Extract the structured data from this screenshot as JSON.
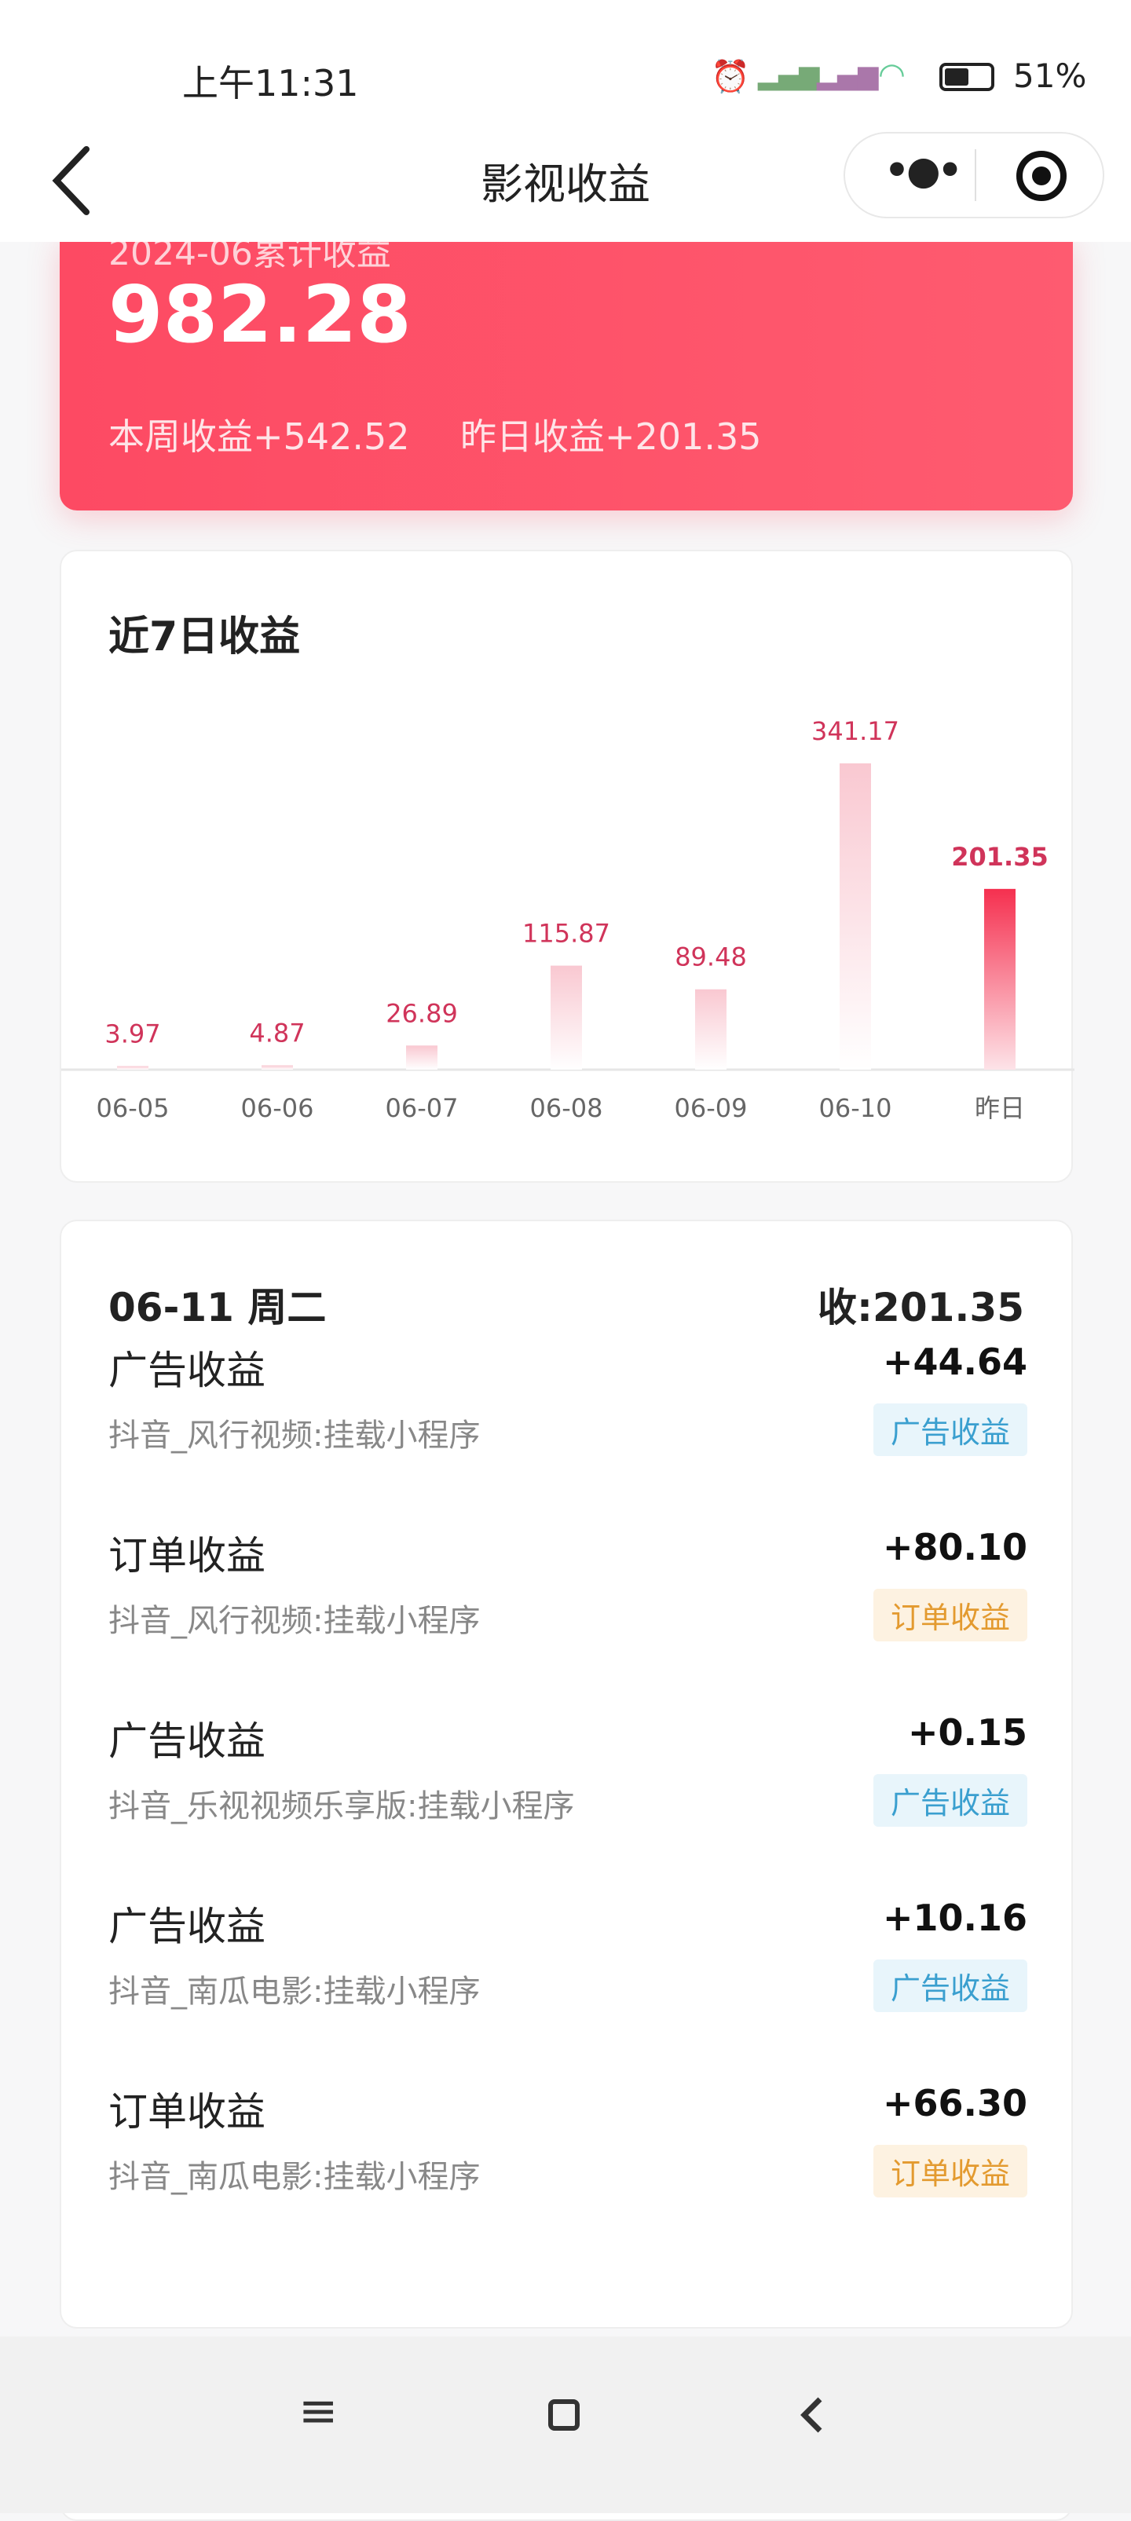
{
  "status_bar": {
    "time": "上午11:31",
    "battery": "51%"
  },
  "nav": {
    "title": "影视收益",
    "more_icon": "more-dots-icon",
    "target_icon": "target-icon",
    "back_icon": "chevron-left-icon"
  },
  "hero": {
    "label": "2024-06累计收益",
    "total": "982.28",
    "week": "本周收益+542.52",
    "yesterday": "昨日收益+201.35"
  },
  "chart_data": {
    "type": "bar",
    "title": "近7日收益",
    "categories": [
      "06-05",
      "06-06",
      "06-07",
      "06-08",
      "06-09",
      "06-10",
      "昨日"
    ],
    "values": [
      3.97,
      4.87,
      26.89,
      115.87,
      89.48,
      341.17,
      201.35
    ],
    "value_labels": [
      "3.97",
      "4.87",
      "26.89",
      "115.87",
      "89.48",
      "341.17",
      "201.35"
    ],
    "highlight_color": "#f5304f",
    "bar_color": "#f9c8d1"
  },
  "detail": {
    "date": "06-11 周二",
    "total": "收:201.35",
    "items": [
      {
        "title": "广告收益",
        "source": "抖音_风行视频:挂载小程序",
        "amount": "+44.64",
        "tag": "广告收益",
        "type": "ad"
      },
      {
        "title": "订单收益",
        "source": "抖音_风行视频:挂载小程序",
        "amount": "+80.10",
        "tag": "订单收益",
        "type": "order"
      },
      {
        "title": "广告收益",
        "source": "抖音_乐视视频乐享版:挂载小程序",
        "amount": "+0.15",
        "tag": "广告收益",
        "type": "ad"
      },
      {
        "title": "广告收益",
        "source": "抖音_南瓜电影:挂载小程序",
        "amount": "+10.16",
        "tag": "广告收益",
        "type": "ad"
      },
      {
        "title": "订单收益",
        "source": "抖音_南瓜电影:挂载小程序",
        "amount": "+66.30",
        "tag": "订单收益",
        "type": "order"
      }
    ]
  },
  "colors": {
    "accent": "#fd4a63",
    "ad_tag": "#3a9fcf",
    "order_tag": "#e39a2f"
  }
}
